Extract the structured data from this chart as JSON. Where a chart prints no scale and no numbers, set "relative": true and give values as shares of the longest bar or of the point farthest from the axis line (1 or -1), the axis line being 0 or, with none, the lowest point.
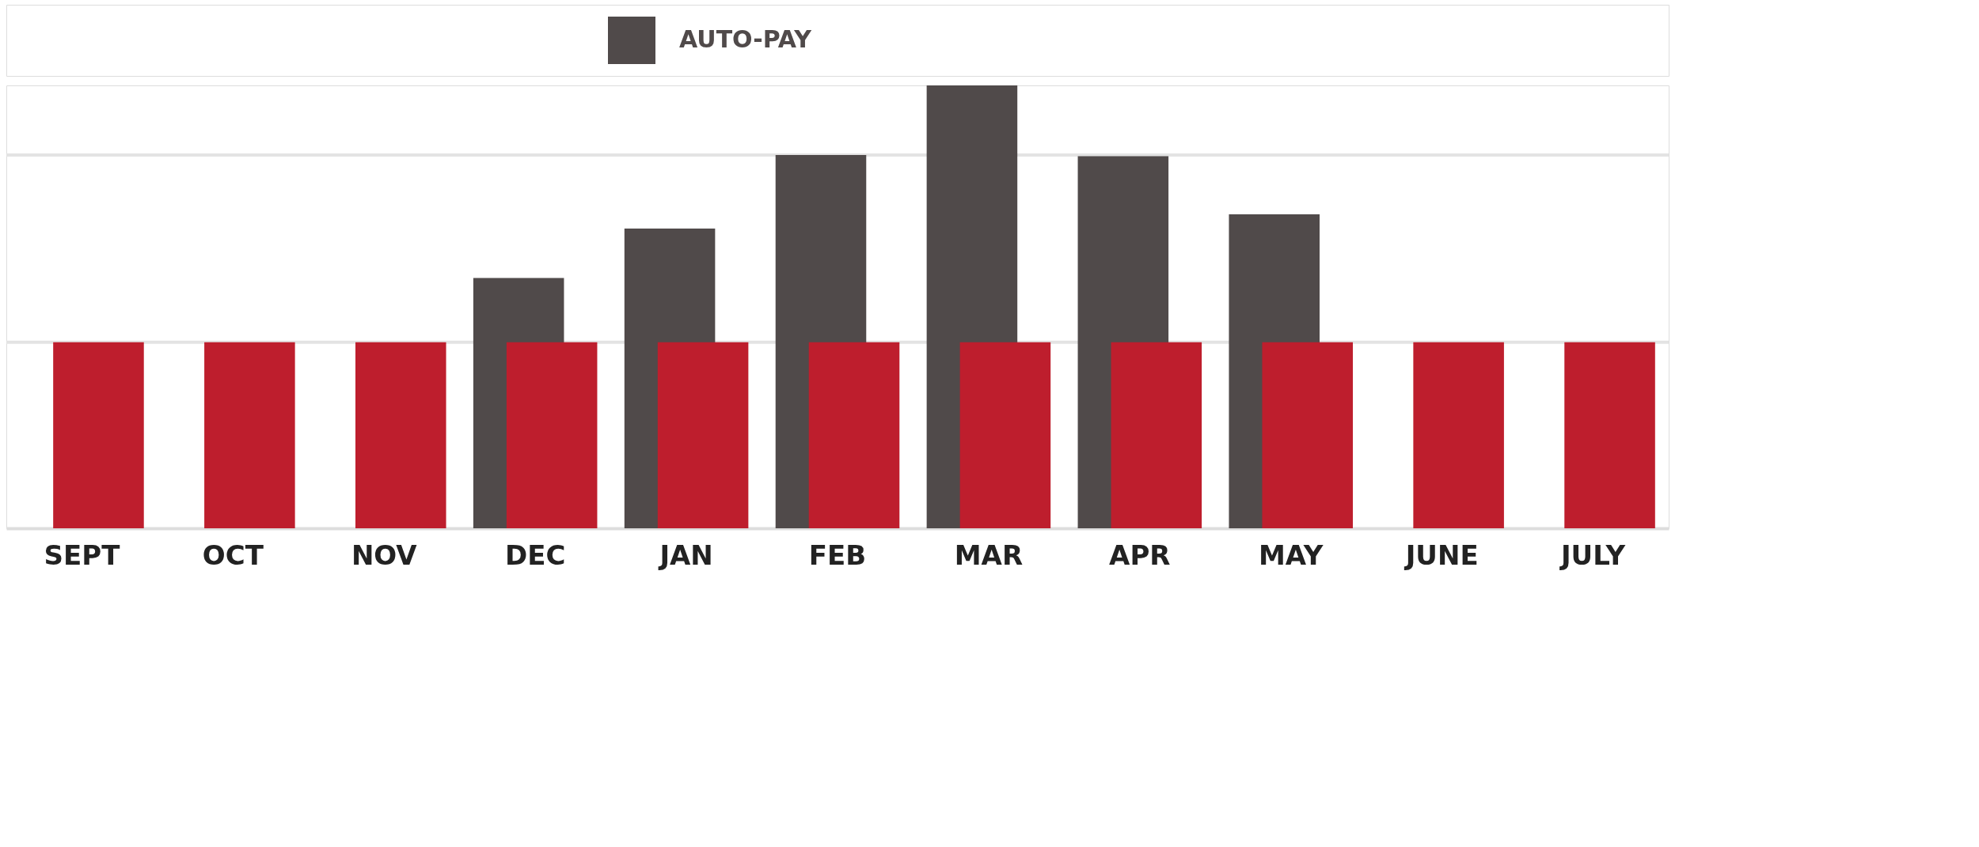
{
  "chart_data": {
    "type": "bar",
    "relative": true,
    "categories": [
      "SEPT",
      "OCT",
      "NOV",
      "DEC",
      "JAN",
      "FEB",
      "MAR",
      "APR",
      "MAY",
      "JUNE",
      "JULY"
    ],
    "series": [
      {
        "name": "AUTO-PAY",
        "color": "#504a4a",
        "values": [
          null,
          null,
          null,
          0.565,
          0.677,
          0.843,
          1,
          0.84,
          0.709,
          null,
          null
        ]
      },
      {
        "color": "#be1e2d",
        "values": [
          0.42,
          0.42,
          0.42,
          0.42,
          0.42,
          0.42,
          0.42,
          0.42,
          0.42,
          0.42,
          0.42
        ]
      }
    ],
    "ref_lines": [
      {
        "axis": "y",
        "value": 0.42,
        "color": "#e3e3e3"
      },
      {
        "axis": "y",
        "value": 0.843,
        "color": "#e3e3e3"
      }
    ],
    "legend": "top"
  }
}
